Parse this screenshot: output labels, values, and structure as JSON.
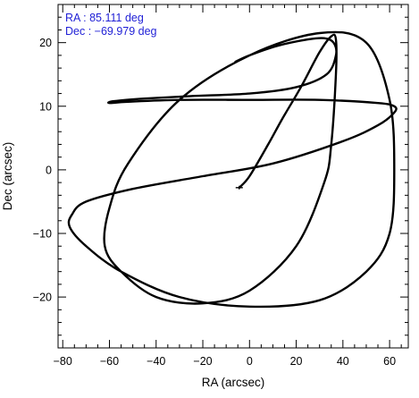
{
  "chart_data": {
    "type": "line",
    "title": "",
    "xlabel": "RA (arcsec)",
    "ylabel": "Dec (arcsec)",
    "xlim": [
      -82,
      68
    ],
    "ylim": [
      -28,
      26
    ],
    "x_ticks": [
      -80,
      -60,
      -40,
      -20,
      0,
      20,
      40,
      60
    ],
    "y_ticks": [
      -20,
      -10,
      0,
      10,
      20
    ],
    "x_tick_labels": [
      "−80",
      "−60",
      "−40",
      "−20",
      "0",
      "20",
      "40",
      "60"
    ],
    "y_tick_labels": [
      "−20",
      "−10",
      "0",
      "10",
      "20"
    ],
    "grid": false,
    "annotations": [
      {
        "text": "RA : 85.111 deg",
        "color": "#1f1fd6",
        "position": "top-left"
      },
      {
        "text": "Dec : −69.979 deg",
        "color": "#1f1fd6",
        "position": "top-left"
      }
    ],
    "series": [
      {
        "color": "#000000",
        "x": [
          -4.4,
          0,
          8,
          14,
          22,
          30,
          35,
          37,
          37,
          35,
          32,
          20,
          0,
          -20,
          -40,
          -55,
          -62,
          -60,
          -52,
          -30,
          0,
          30,
          50,
          60,
          62,
          60,
          50,
          30,
          0,
          -30,
          -55,
          -70,
          -77,
          -76,
          -70,
          -50,
          -20,
          10,
          40,
          55,
          62,
          62,
          55,
          30,
          0,
          -30,
          -52,
          -60,
          -58,
          -45,
          -25,
          0,
          20,
          33,
          37,
          36,
          32,
          25,
          12,
          0,
          -6
        ],
        "y": [
          -2.8,
          -1,
          4,
          8,
          13,
          18.5,
          21,
          20.5,
          15,
          4,
          -2,
          -12,
          -19,
          -21,
          -20,
          -16,
          -12,
          -6,
          1,
          11,
          18,
          21.5,
          20,
          11,
          0,
          -10,
          -16,
          -20.5,
          -21.5,
          -20,
          -16,
          -12,
          -9,
          -7,
          -5,
          -3,
          -1,
          1,
          4.5,
          7,
          9,
          10,
          10.5,
          11,
          11,
          11,
          10.7,
          10.5,
          10.8,
          11.2,
          11.6,
          12,
          13,
          15,
          18,
          20,
          20.7,
          20.5,
          19.5,
          18,
          17
        ]
      }
    ]
  }
}
